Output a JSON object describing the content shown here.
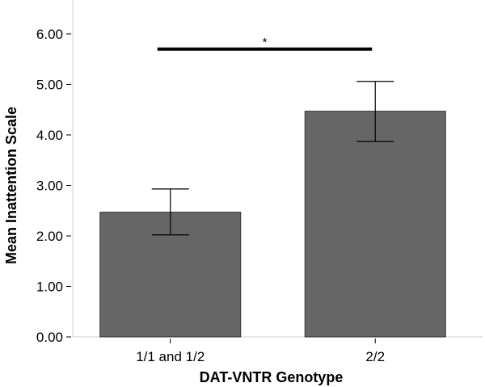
{
  "chart_data": {
    "type": "bar",
    "title": "",
    "xlabel": "DAT-VNTR Genotype",
    "ylabel": "Mean Inattention Scale",
    "categories": [
      "1/1 and 1/2",
      "2/2"
    ],
    "values": [
      2.47,
      4.47
    ],
    "error_low": [
      2.02,
      3.87
    ],
    "error_high": [
      2.93,
      5.06
    ],
    "ylim": [
      0,
      6.0
    ],
    "yticks": [
      "0.00",
      "1.00",
      "2.00",
      "3.00",
      "4.00",
      "5.00",
      "6.00"
    ],
    "grid": false,
    "legend": "none",
    "bar_color": "#666666",
    "annotation": {
      "text": "*",
      "between": [
        "1/1 and 1/2",
        "2/2"
      ],
      "y": 5.7
    }
  }
}
